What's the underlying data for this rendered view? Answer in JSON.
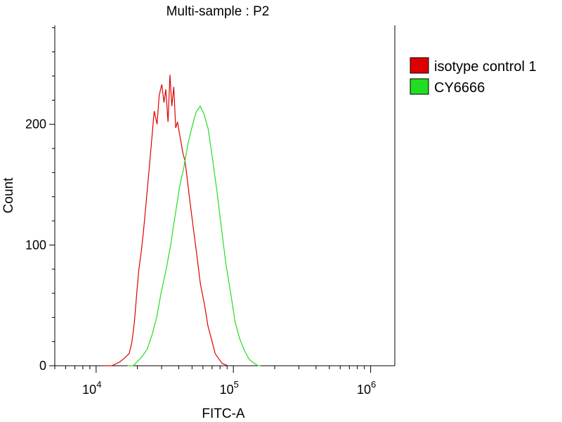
{
  "chart_data": {
    "type": "line",
    "title": "Multi-sample : P2",
    "xlabel": "FITC-A",
    "ylabel": "Count",
    "x_scale": "log",
    "xlim": [
      5000,
      1500000
    ],
    "ylim": [
      0,
      282
    ],
    "x_ticks": [
      {
        "base": "10",
        "exp": "4",
        "value": 10000
      },
      {
        "base": "10",
        "exp": "5",
        "value": 100000
      },
      {
        "base": "10",
        "exp": "6",
        "value": 1000000
      }
    ],
    "y_ticks": [
      {
        "label": "0",
        "value": 0
      },
      {
        "label": "100",
        "value": 100
      },
      {
        "label": "200",
        "value": 200
      }
    ],
    "grid": false,
    "legend_position": "right",
    "series": [
      {
        "name": "isotype control 1",
        "color": "#dd0000",
        "x": [
          11300,
          13000,
          14800,
          16000,
          17400,
          18200,
          19000,
          19800,
          20500,
          21300,
          22200,
          23000,
          24000,
          25100,
          26500,
          27800,
          28800,
          30100,
          31200,
          32200,
          33400,
          34500,
          35600,
          36800,
          38000,
          39200,
          40400,
          41700,
          42900,
          44400,
          46100,
          48400,
          51100,
          54100,
          57500,
          61500,
          65300,
          69200,
          73700,
          78100,
          82700,
          87000,
          91200
        ],
        "y": [
          0,
          0,
          3,
          6,
          10,
          19,
          36,
          61,
          80,
          94,
          113,
          132,
          155,
          180,
          211,
          200,
          224,
          233,
          218,
          229,
          202,
          241,
          215,
          231,
          197,
          202,
          193,
          184,
          176,
          170,
          155,
          135,
          114,
          92,
          68,
          51,
          33,
          22,
          10,
          6,
          2,
          1,
          0
        ]
      },
      {
        "name": "CY6666",
        "color": "#22dd22",
        "x": [
          17000,
          18600,
          20200,
          21800,
          23600,
          25600,
          27600,
          29800,
          32300,
          34900,
          37600,
          40500,
          43500,
          46700,
          50000,
          53500,
          57300,
          61300,
          65600,
          70400,
          75800,
          81500,
          88000,
          95600,
          103000,
          111500,
          121000,
          131000,
          142000,
          151000,
          158000
        ],
        "y": [
          0,
          0,
          4,
          8,
          14,
          26,
          40,
          61,
          79,
          100,
          124,
          148,
          164,
          184,
          198,
          210,
          215,
          208,
          196,
          172,
          145,
          116,
          85,
          60,
          36,
          22,
          12,
          5,
          2,
          0,
          0
        ]
      }
    ]
  }
}
